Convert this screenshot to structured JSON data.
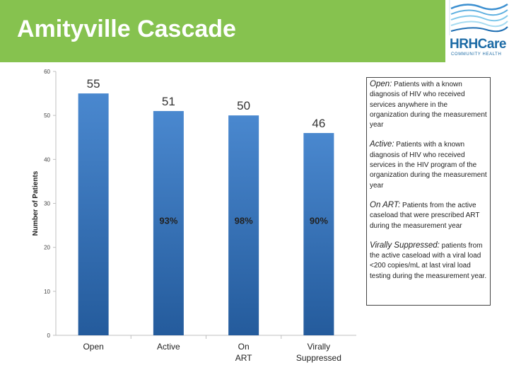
{
  "title": "Amityville Cascade",
  "logo": {
    "name": "HRHCare",
    "subtitle": "COMMUNITY HEALTH"
  },
  "colors": {
    "title_bar": "#86c24f",
    "bar_top": "#4a88cf",
    "bar_bottom": "#245b9c",
    "logo": "#1b6aa5"
  },
  "chart_data": {
    "type": "bar",
    "categories": [
      "Open",
      "Active",
      "On ART",
      "Virally Suppressed"
    ],
    "values": [
      55,
      51,
      50,
      46
    ],
    "value_labels": [
      "55",
      "51",
      "50",
      "46"
    ],
    "percent_labels": [
      "",
      "93%",
      "98%",
      "90%"
    ],
    "xlabel": "",
    "ylabel": "Number of Patients",
    "ylim": [
      0,
      60
    ],
    "yticks": [
      0,
      10,
      20,
      30,
      40,
      50,
      60
    ],
    "grid": false
  },
  "definitions": [
    {
      "term": "Open:",
      "text": "Patients with a known diagnosis of HIV who received services anywhere in the organization during the measurement year"
    },
    {
      "term": "Active:",
      "text": "Patients with a known diagnosis of HIV who received services in the HIV program of the organization during the measurement year"
    },
    {
      "term": "On ART:",
      "text": "Patients from the active caseload that were prescribed ART during the measurement year"
    },
    {
      "term": "Virally Suppressed:",
      "text": "patients from the active caseload with a viral load <200 copies/mL at last viral load testing during the measurement year."
    }
  ]
}
